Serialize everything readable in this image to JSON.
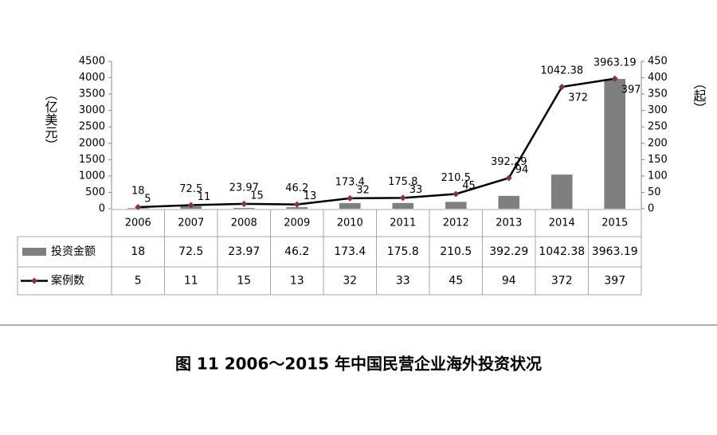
{
  "chart_data": {
    "type": "bar-line",
    "title": "图 11  2006～2015 年中国民营企业海外投资状况",
    "y_label": "（亿美元）",
    "y2_label": "（起）",
    "categories": [
      "2006",
      "2007",
      "2008",
      "2009",
      "2010",
      "2011",
      "2012",
      "2013",
      "2014",
      "2015"
    ],
    "series": [
      {
        "name": "投资金额",
        "type": "bar",
        "color": "#7f7f7f",
        "values": [
          18,
          72.5,
          23.97,
          46.2,
          173.4,
          175.8,
          210.5,
          392.29,
          1042.38,
          3963.19
        ]
      },
      {
        "name": "案例数",
        "type": "line",
        "axis": "y2",
        "color": "#000000",
        "marker_color": "#8b2a5a",
        "values": [
          5,
          11,
          15,
          13,
          32,
          33,
          45,
          94,
          372,
          397
        ]
      }
    ],
    "ylim": [
      0,
      4500
    ],
    "yticks": [
      0,
      500,
      1000,
      1500,
      2000,
      2500,
      3000,
      3500,
      4000,
      4500
    ],
    "y2lim": [
      0,
      450
    ],
    "y2ticks": [
      0,
      50,
      100,
      150,
      200,
      250,
      300,
      350,
      400,
      450
    ],
    "data_table": true
  }
}
